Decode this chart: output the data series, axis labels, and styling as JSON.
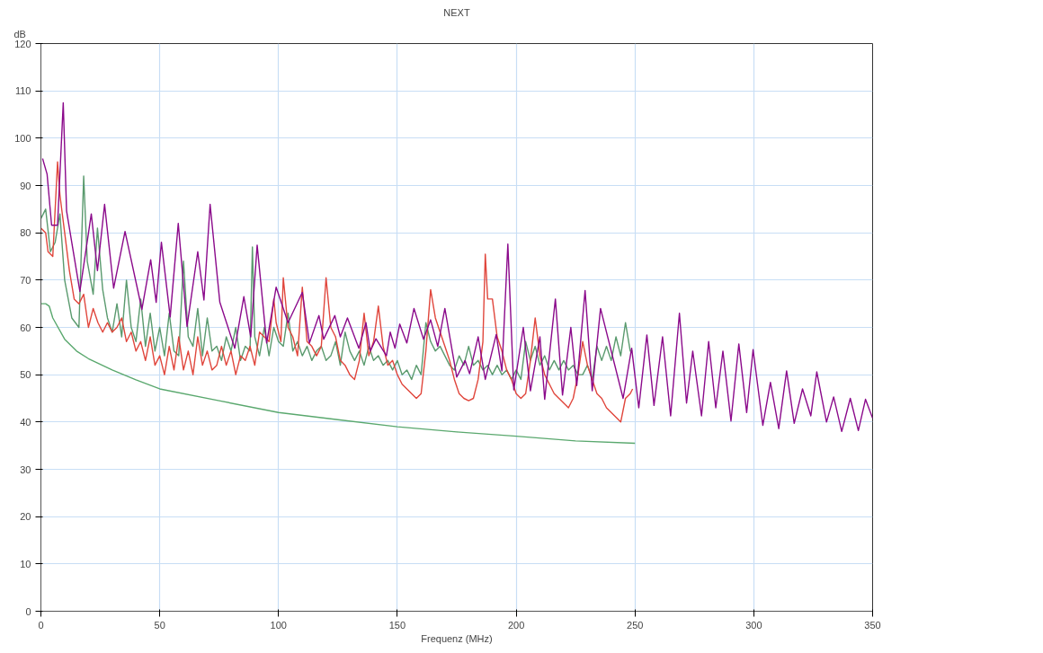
{
  "chart_data": {
    "type": "line",
    "title": "NEXT",
    "xlabel": "Frequenz (MHz)",
    "ylabel": "dB",
    "xlim": [
      0,
      350
    ],
    "ylim": [
      0,
      120
    ],
    "xticks": [
      0,
      50,
      100,
      150,
      200,
      250,
      300,
      350
    ],
    "yticks": [
      0,
      10,
      20,
      30,
      40,
      50,
      60,
      70,
      80,
      90,
      100,
      110,
      120
    ],
    "grid": true,
    "marker": "none",
    "line_style": "solid",
    "series": [
      {
        "color": "#5a9a6e",
        "x": [
          0,
          2,
          4,
          6,
          8,
          10,
          13,
          16,
          18,
          19.5,
          22,
          23.8,
          26,
          28,
          30,
          32,
          34,
          36,
          38,
          40,
          42,
          44,
          46,
          48,
          50,
          52,
          54,
          56,
          58,
          60,
          62,
          64,
          66,
          68,
          70,
          72,
          74,
          76,
          78,
          80,
          82,
          84,
          86,
          88,
          89,
          90,
          92,
          94,
          96,
          98,
          100,
          102,
          104,
          106,
          108,
          110,
          112,
          114,
          116,
          118,
          120,
          122,
          124,
          126,
          128,
          130,
          132,
          134,
          136,
          138,
          140,
          142,
          144,
          146,
          148,
          150,
          152,
          154,
          156,
          158,
          160,
          162,
          164,
          166,
          168,
          170,
          172,
          174,
          176,
          178,
          180,
          182,
          184,
          186,
          188,
          190,
          192,
          194,
          196,
          198,
          200,
          202,
          204,
          206,
          208,
          210,
          212,
          214,
          216,
          218,
          220,
          222,
          224,
          226,
          228,
          230,
          232,
          234,
          236,
          238,
          240,
          242,
          244,
          246,
          248,
          249
        ],
        "values": [
          83,
          85,
          76,
          78,
          84,
          70,
          62,
          60,
          92,
          74,
          67,
          81,
          68,
          62,
          59,
          65,
          58,
          70,
          60,
          57,
          66,
          56,
          63,
          55,
          60,
          54,
          63,
          55,
          54,
          74,
          58,
          56,
          64,
          54,
          62,
          55,
          56,
          53,
          58,
          55,
          60,
          53,
          56,
          55,
          77,
          58,
          54,
          60,
          54,
          60,
          57,
          56,
          63,
          55,
          57,
          54,
          56,
          53,
          55,
          56,
          53,
          54,
          57,
          52,
          59,
          55,
          53,
          55,
          52,
          56,
          53,
          54,
          52,
          53,
          51,
          53,
          50,
          51,
          49,
          52,
          50,
          61,
          57,
          55,
          56,
          54,
          52,
          51,
          54,
          52,
          56,
          52,
          53,
          51,
          52,
          50,
          52,
          50,
          51,
          49,
          51,
          49,
          57,
          53,
          56,
          52,
          54,
          51,
          53,
          51,
          53,
          51,
          52,
          50,
          50,
          52,
          49,
          56,
          53,
          56,
          53,
          58,
          54,
          61,
          55,
          55
        ]
      },
      {
        "color": "#e0463c",
        "x": [
          0,
          2,
          3,
          5,
          7,
          8,
          10,
          12,
          14,
          16,
          18,
          20,
          22,
          24,
          26,
          28,
          30,
          32,
          34,
          36,
          38,
          40,
          42,
          44,
          46,
          48,
          50,
          52,
          54,
          56,
          58,
          60,
          62,
          64,
          66,
          68,
          70,
          72,
          74,
          76,
          78,
          80,
          82,
          84,
          86,
          88,
          90,
          92,
          94,
          96,
          98,
          99,
          101,
          102,
          104,
          106,
          108,
          110,
          112,
          114,
          116,
          118,
          120,
          122,
          124,
          126,
          128,
          130,
          132,
          134,
          136,
          138,
          140,
          142,
          144,
          146,
          148,
          150,
          152,
          154,
          156,
          158,
          160,
          162,
          164,
          166,
          168,
          170,
          172,
          174,
          176,
          178,
          180,
          182,
          184,
          186,
          187,
          188,
          190,
          192,
          194,
          196,
          198,
          200,
          202,
          204,
          206,
          208,
          210,
          212,
          214,
          216,
          218,
          220,
          222,
          224,
          226,
          228,
          230,
          232,
          234,
          236,
          238,
          240,
          242,
          244,
          246,
          248,
          249
        ],
        "values": [
          81,
          80,
          76,
          75,
          95,
          88,
          80,
          72,
          66,
          65,
          67,
          60,
          64,
          61,
          59,
          61,
          59,
          60,
          62,
          57,
          59,
          55,
          57,
          53,
          58,
          52,
          54,
          50,
          56,
          51,
          58,
          51,
          55,
          50,
          58,
          52,
          55,
          51,
          52,
          56,
          52,
          55,
          50,
          54,
          53,
          56,
          52,
          59,
          58,
          57,
          66,
          61,
          57,
          70.5,
          60,
          58,
          54,
          68.5,
          57,
          56,
          54,
          56,
          70.5,
          60,
          58,
          53,
          52,
          50,
          49,
          53,
          63,
          54,
          57,
          64.5,
          56,
          52,
          53,
          50,
          48,
          47,
          46,
          45,
          46,
          55,
          68,
          62,
          59,
          56,
          53,
          49,
          46,
          45,
          44.5,
          45,
          49,
          57,
          75.5,
          66,
          66,
          58,
          55,
          51,
          49,
          46,
          45,
          46,
          53,
          62,
          54,
          50,
          48,
          46,
          45,
          44,
          43,
          45,
          50,
          57,
          52,
          49,
          46,
          45,
          43,
          42,
          41,
          40,
          45,
          46,
          47
        ]
      },
      {
        "color": "#8b0a8b",
        "x": [
          0.7,
          2.6,
          4.5,
          7,
          9.4,
          10.8,
          16.4,
          21.2,
          23.8,
          26.8,
          30.6,
          35.4,
          42.5,
          46.2,
          48.5,
          50.7,
          54.4,
          57.8,
          61.5,
          66,
          68.6,
          71.2,
          75.3,
          81.6,
          85.4,
          88.3,
          91,
          95,
          99,
          104,
          110,
          113,
          117,
          119,
          123.7,
          126,
          129,
          133.8,
          136.8,
          138.6,
          141,
          145.4,
          147,
          149,
          151,
          154,
          157,
          161,
          164,
          167,
          170,
          175,
          178.5,
          180.4,
          184,
          187,
          191.6,
          194,
          196.5,
          199,
          203,
          206,
          210,
          212,
          216.5,
          219.5,
          223,
          225.5,
          229,
          232,
          235.5,
          245,
          248.6,
          251.6,
          255,
          258,
          261.6,
          265,
          268.7,
          271.7,
          274.3,
          278,
          281,
          284,
          287,
          290.4,
          293.7,
          297,
          299.7,
          303.8,
          307,
          310.5,
          313.8,
          317,
          320.5,
          324,
          326.5,
          330.6,
          333.6,
          337,
          340.6,
          344,
          347,
          350
        ],
        "values": [
          95.7,
          92.4,
          81.6,
          81.6,
          107.5,
          84.6,
          67.6,
          84,
          72,
          86,
          68.3,
          80.3,
          63.8,
          74.3,
          65.3,
          78,
          62.2,
          82,
          60.2,
          76,
          65.8,
          86,
          65.3,
          55.6,
          66.5,
          58,
          77.4,
          56.7,
          68.5,
          61,
          67.4,
          56.7,
          62.5,
          57.5,
          62.5,
          58,
          62,
          55.6,
          61,
          55,
          57.6,
          54,
          59,
          55.6,
          60.7,
          56.7,
          64,
          57.5,
          61.6,
          56,
          64,
          49.5,
          53,
          50.2,
          58,
          49,
          58.5,
          50.8,
          77.6,
          46.8,
          60,
          46.6,
          58,
          44.8,
          66,
          45.7,
          60,
          47.7,
          67.8,
          46.6,
          64,
          45,
          55.6,
          43,
          58.4,
          43.5,
          58,
          41.3,
          63,
          44,
          55,
          41.3,
          57,
          43,
          55,
          40.2,
          56.5,
          42,
          55.3,
          39.3,
          48.4,
          38.6,
          50.8,
          39.7,
          47,
          41.3,
          50.6,
          40,
          45.3,
          38,
          45,
          38.2,
          44.8,
          40.8
        ]
      },
      {
        "color": "#5aa86e",
        "x": [
          0,
          2,
          3.5,
          5,
          10,
          15,
          20,
          30,
          40,
          50,
          75,
          100,
          125,
          150,
          175,
          200,
          225,
          250
        ],
        "values": [
          65,
          65,
          64.5,
          62,
          57.5,
          55,
          53.4,
          51,
          48.9,
          47,
          44.5,
          42,
          40.5,
          39,
          37.9,
          37,
          36,
          35.5
        ]
      }
    ]
  }
}
